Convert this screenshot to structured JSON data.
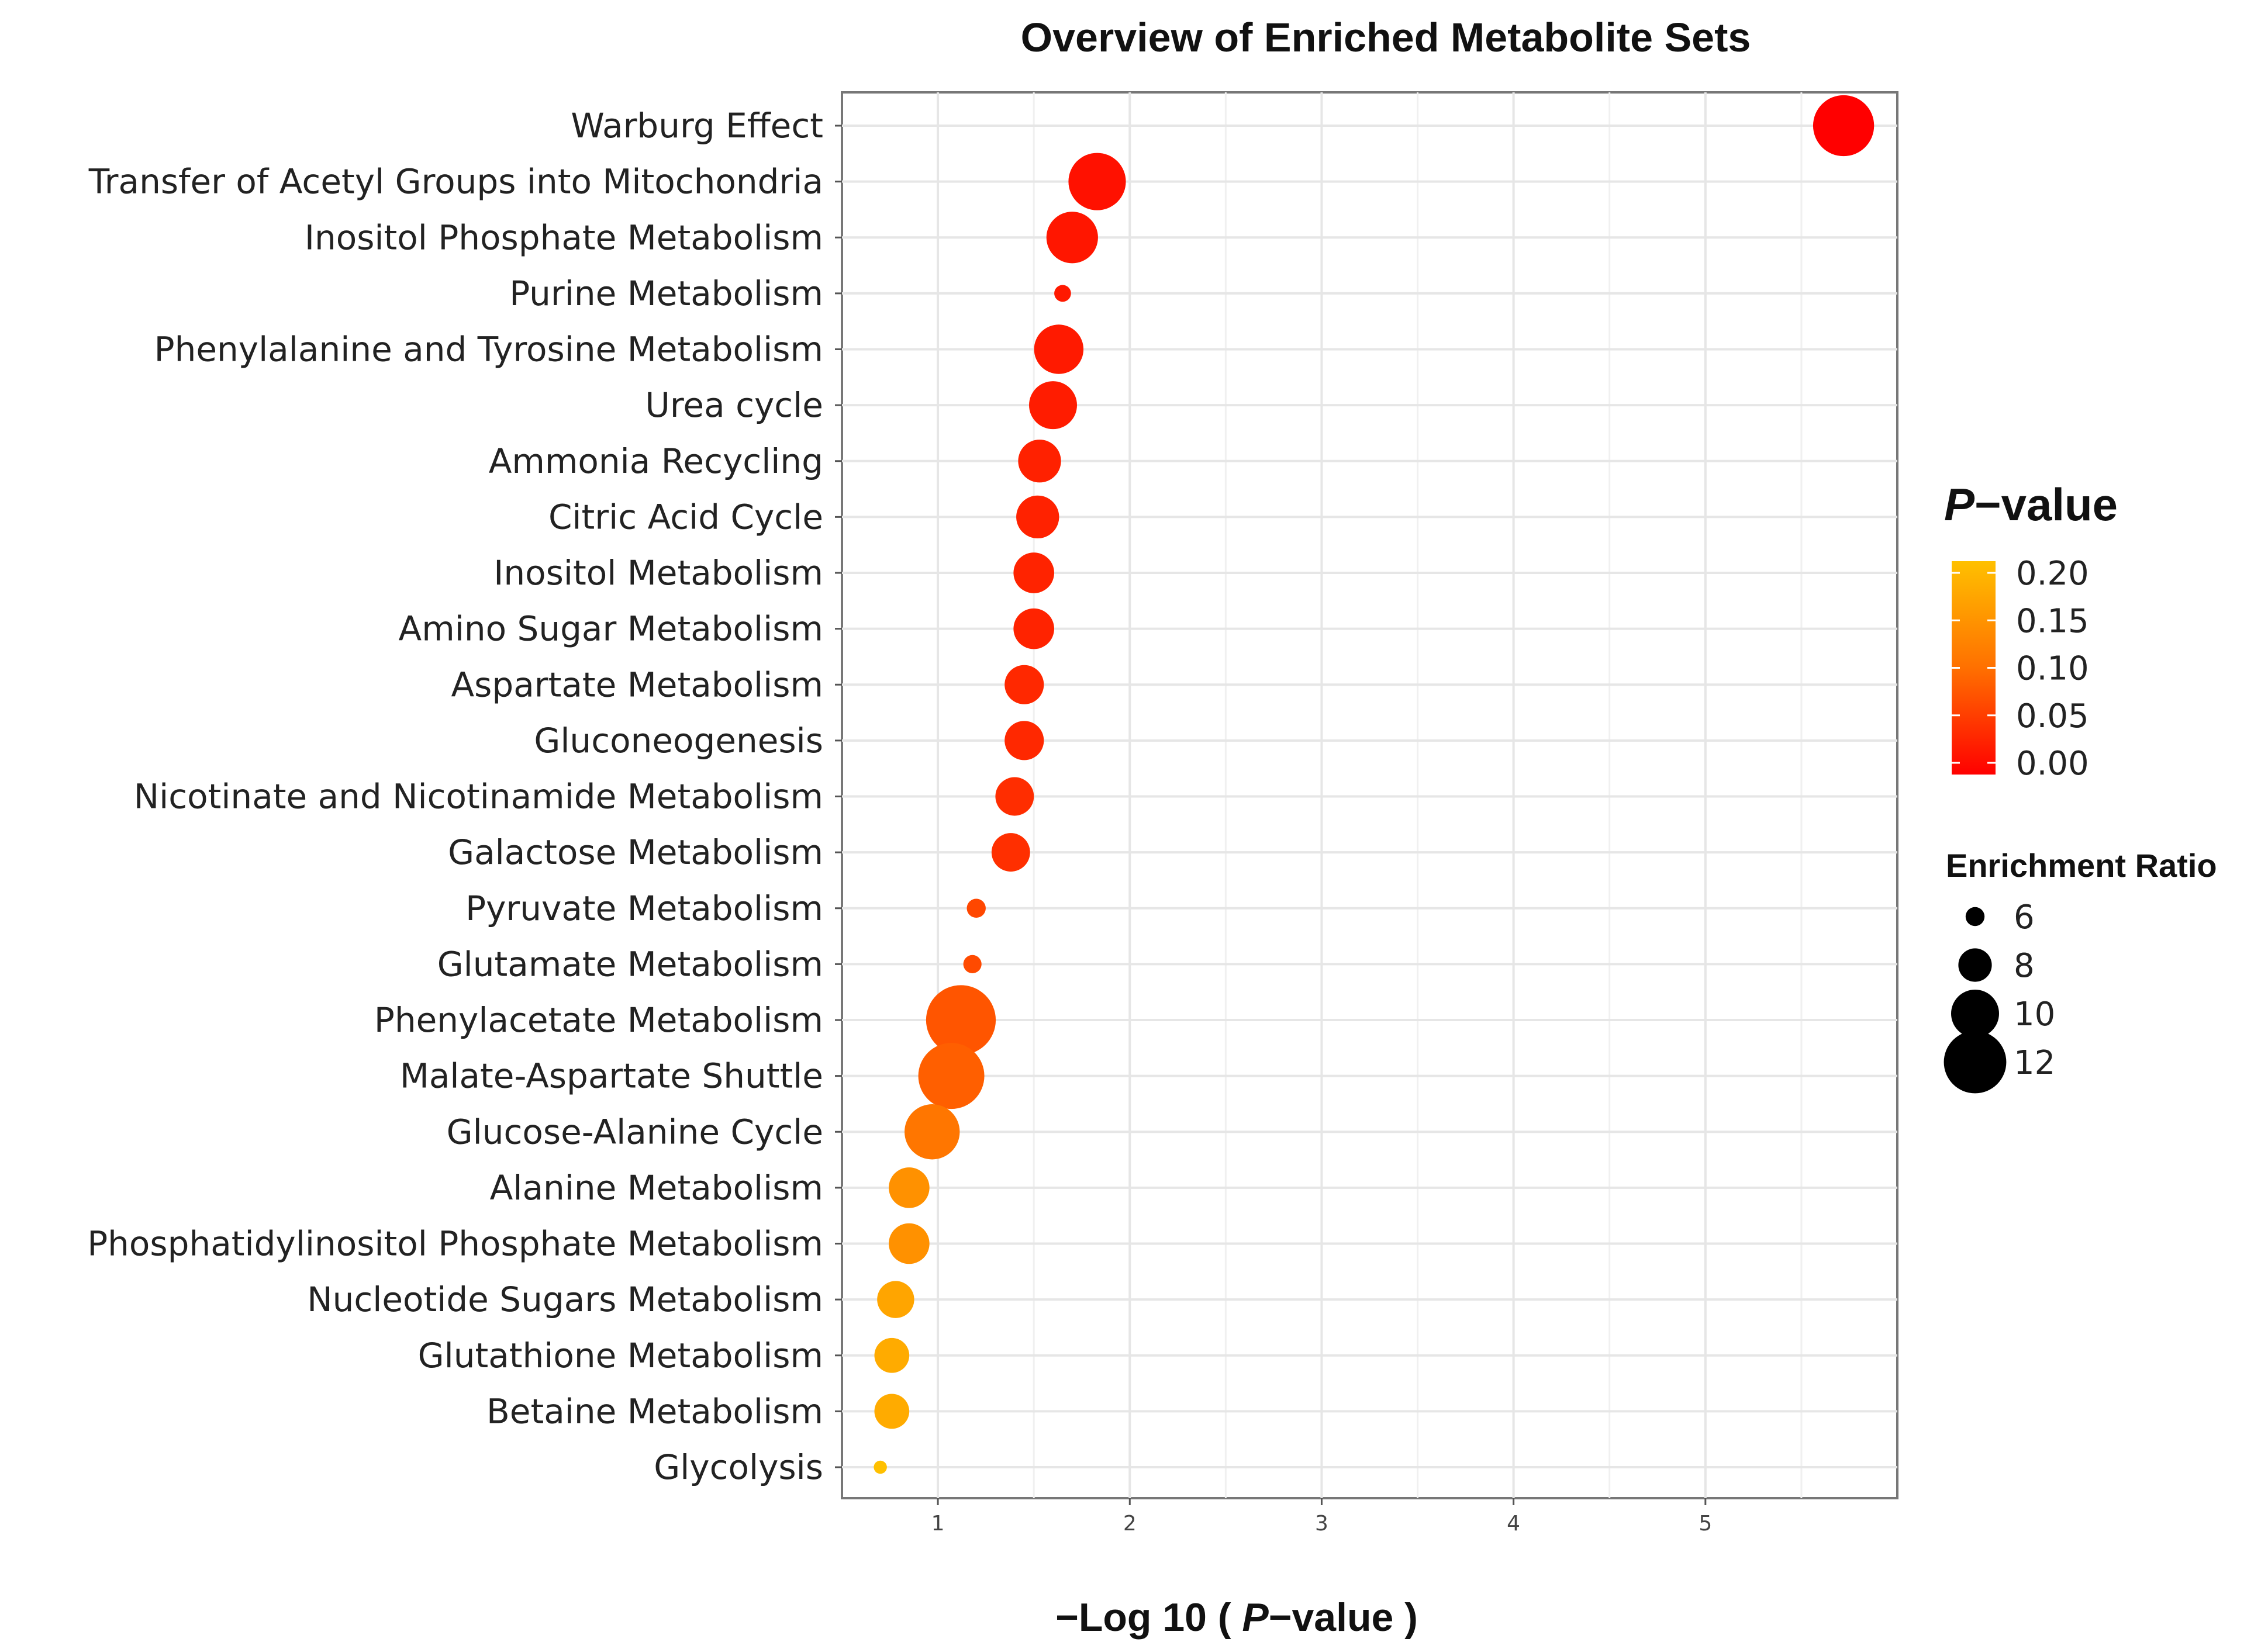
{
  "chart_data": {
    "type": "scatter",
    "title": "Overview of Enriched Metabolite Sets",
    "xlabel_prefix": "−Log 10 ( ",
    "xlabel_italic": "P",
    "xlabel_suffix": "−value )",
    "xlim": [
      0.5,
      6.0
    ],
    "xticks": [
      1,
      2,
      3,
      4,
      5
    ],
    "xtick_labels": [
      "1",
      "2",
      "3",
      "4",
      "5"
    ],
    "grid": true,
    "categories": [
      "Warburg Effect",
      "Transfer of Acetyl Groups into Mitochondria",
      "Inositol Phosphate Metabolism",
      "Purine Metabolism",
      "Phenylalanine and Tyrosine Metabolism",
      "Urea cycle",
      "Ammonia Recycling",
      "Citric Acid Cycle",
      "Inositol Metabolism",
      "Amino Sugar Metabolism",
      "Aspartate Metabolism",
      "Gluconeogenesis",
      "Nicotinate and Nicotinamide Metabolism",
      "Galactose Metabolism",
      "Pyruvate Metabolism",
      "Glutamate Metabolism",
      "Phenylacetate Metabolism",
      "Malate-Aspartate Shuttle",
      "Glucose-Alanine Cycle",
      "Alanine Metabolism",
      "Phosphatidylinositol Phosphate Metabolism",
      "Nucleotide Sugars Metabolism",
      "Glutathione Metabolism",
      "Betaine Metabolism",
      "Glycolysis"
    ],
    "neg_log10_p": [
      5.72,
      1.83,
      1.7,
      1.65,
      1.63,
      1.6,
      1.53,
      1.52,
      1.5,
      1.5,
      1.45,
      1.45,
      1.4,
      1.38,
      1.2,
      1.18,
      1.12,
      1.07,
      0.97,
      0.85,
      0.85,
      0.78,
      0.76,
      0.76,
      0.7
    ],
    "enrichment_ratio": [
      11.8,
      11.3,
      10.5,
      5.7,
      10.2,
      10.0,
      9.3,
      9.3,
      9.0,
      9.0,
      8.8,
      8.8,
      8.7,
      8.7,
      6.0,
      5.9,
      13.0,
      12.5,
      11.0,
      9.0,
      9.0,
      8.5,
      8.2,
      8.2,
      5.2
    ],
    "legend_color": {
      "title_italic": "P",
      "title_suffix": "−value",
      "ticks": [
        "0.20",
        "0.15",
        "0.10",
        "0.05",
        "0.00"
      ],
      "tick_values": [
        0.2,
        0.15,
        0.1,
        0.05,
        0.0
      ],
      "min_color": "#ff0000",
      "mid_color": "#ff7000",
      "max_color": "#ffc000",
      "position": "right"
    },
    "legend_size": {
      "title": "Enrichment Ratio",
      "values": [
        6,
        8,
        10,
        12
      ],
      "labels": [
        "6",
        "8",
        "10",
        "12"
      ],
      "swatch_color": "#000000",
      "position": "right"
    }
  }
}
